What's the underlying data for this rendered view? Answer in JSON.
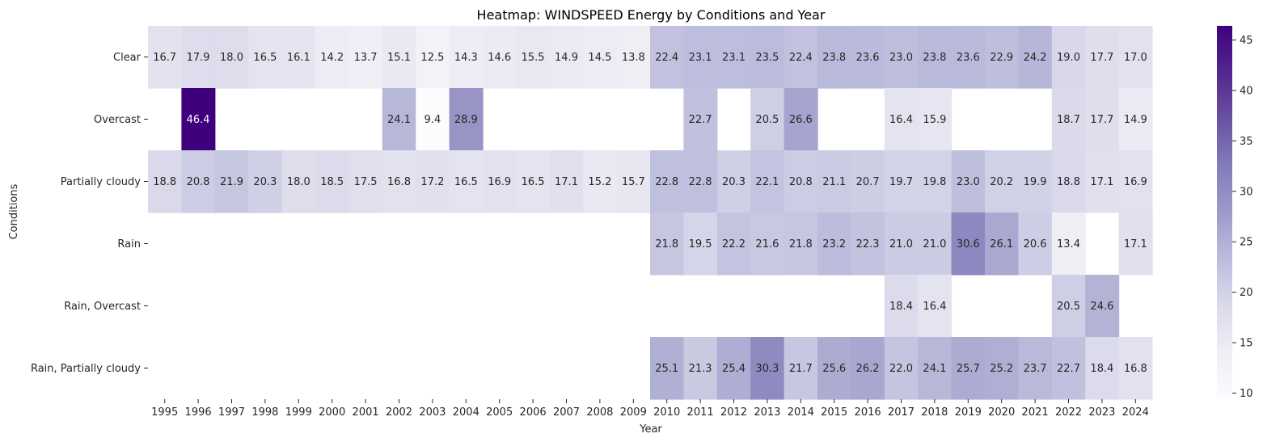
{
  "chart_data": {
    "type": "heatmap",
    "title": "Heatmap: WINDSPEED Energy by Conditions and Year",
    "xlabel": "Year",
    "ylabel": "Conditions",
    "x": [
      "1995",
      "1996",
      "1997",
      "1998",
      "1999",
      "2000",
      "2001",
      "2002",
      "2003",
      "2004",
      "2005",
      "2006",
      "2007",
      "2008",
      "2009",
      "2010",
      "2011",
      "2012",
      "2013",
      "2014",
      "2015",
      "2016",
      "2017",
      "2018",
      "2019",
      "2020",
      "2021",
      "2022",
      "2023",
      "2024"
    ],
    "y": [
      "Clear",
      "Overcast",
      "Partially cloudy",
      "Rain",
      "Rain, Overcast",
      "Rain, Partially cloudy"
    ],
    "values": [
      [
        16.7,
        17.9,
        18.0,
        16.5,
        16.1,
        14.2,
        13.7,
        15.1,
        12.5,
        14.3,
        14.6,
        15.5,
        14.9,
        14.5,
        13.8,
        22.4,
        23.1,
        23.1,
        23.5,
        22.4,
        23.8,
        23.6,
        23.0,
        23.8,
        23.6,
        22.9,
        24.2,
        19.0,
        17.7,
        17.0
      ],
      [
        null,
        46.4,
        null,
        null,
        null,
        null,
        null,
        24.1,
        9.4,
        28.9,
        null,
        null,
        null,
        null,
        null,
        null,
        22.7,
        null,
        20.5,
        26.6,
        null,
        null,
        16.4,
        15.9,
        null,
        null,
        null,
        18.7,
        17.7,
        14.9
      ],
      [
        18.8,
        20.8,
        21.9,
        20.3,
        18.0,
        18.5,
        17.5,
        16.8,
        17.2,
        16.5,
        16.9,
        16.5,
        17.1,
        15.2,
        15.7,
        22.8,
        22.8,
        20.3,
        22.1,
        20.8,
        21.1,
        20.7,
        19.7,
        19.8,
        23.0,
        20.2,
        19.9,
        18.8,
        17.1,
        16.9
      ],
      [
        null,
        null,
        null,
        null,
        null,
        null,
        null,
        null,
        null,
        null,
        null,
        null,
        null,
        null,
        null,
        21.8,
        19.5,
        22.2,
        21.6,
        21.8,
        23.2,
        22.3,
        21.0,
        21.0,
        30.6,
        26.1,
        20.6,
        13.4,
        null,
        17.1
      ],
      [
        null,
        null,
        null,
        null,
        null,
        null,
        null,
        null,
        null,
        null,
        null,
        null,
        null,
        null,
        null,
        null,
        null,
        null,
        null,
        null,
        null,
        null,
        18.4,
        16.4,
        null,
        null,
        null,
        20.5,
        24.6,
        null
      ],
      [
        null,
        null,
        null,
        null,
        null,
        null,
        null,
        null,
        null,
        null,
        null,
        null,
        null,
        null,
        null,
        25.1,
        21.3,
        25.4,
        30.3,
        21.7,
        25.6,
        26.2,
        22.0,
        24.1,
        25.7,
        25.2,
        23.7,
        22.7,
        18.4,
        16.8
      ]
    ],
    "colormap": "Purples",
    "vmin": 9.4,
    "vmax": 46.4,
    "colorbar_ticks": [
      10,
      15,
      20,
      25,
      30,
      35,
      40,
      45
    ],
    "annotation_format": "0.1f",
    "grid": false,
    "legend": "colorbar-right"
  }
}
